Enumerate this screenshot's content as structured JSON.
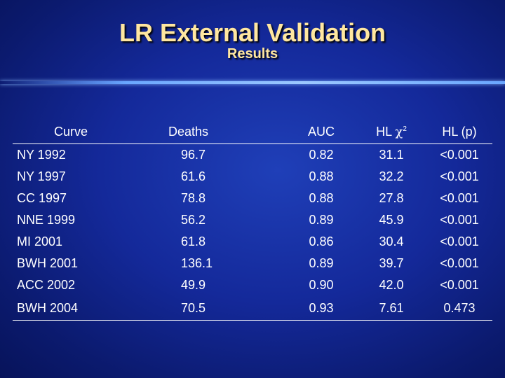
{
  "slide": {
    "title": "LR External Validation",
    "subtitle": "Results"
  },
  "table": {
    "headers": [
      "Curve",
      "Deaths",
      "AUC",
      "HL χ2",
      "HL (p)"
    ],
    "header_hl_chi_prefix": "HL ",
    "header_hl_chi_symbol": "χ",
    "header_hl_chi_sup": "2",
    "rows": [
      [
        "NY 1992",
        "96.7",
        "0.82",
        "31.1",
        "<0.001"
      ],
      [
        "NY 1997",
        "61.6",
        "0.88",
        "32.2",
        "<0.001"
      ],
      [
        "CC 1997",
        "78.8",
        "0.88",
        "27.8",
        "<0.001"
      ],
      [
        "NNE 1999",
        "56.2",
        "0.89",
        "45.9",
        "<0.001"
      ],
      [
        "MI 2001",
        "61.8",
        "0.86",
        "30.4",
        "<0.001"
      ],
      [
        "BWH 2001",
        "136.1",
        "0.89",
        "39.7",
        "<0.001"
      ],
      [
        "ACC 2002",
        "49.9",
        "0.90",
        "42.0",
        "<0.001"
      ],
      [
        "BWH 2004",
        "70.5",
        "0.93",
        "7.61",
        "0.473"
      ]
    ]
  },
  "colors": {
    "title": "#ffe7a0",
    "background": "#14299a",
    "text": "#ffffff"
  }
}
